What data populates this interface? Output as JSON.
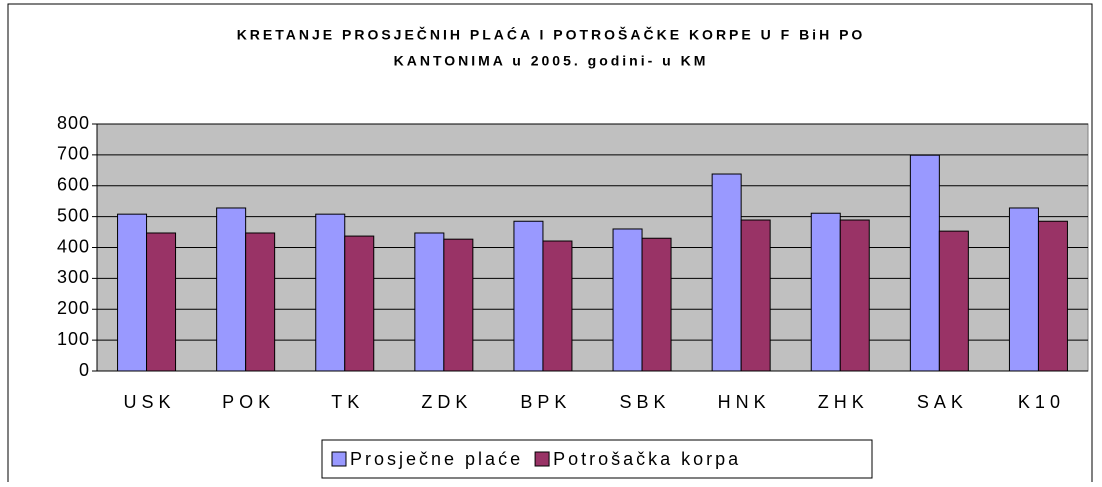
{
  "chart_data": {
    "type": "bar",
    "title": [
      "KRETANJE PROSJEČNIH PLAĆA I POTROŠAČKE KORPE U F BiH PO",
      "KANTONIMA u 2005. godini- u KM"
    ],
    "categories": [
      "USK",
      "POK",
      "TK",
      "ZDK",
      "BPK",
      "SBK",
      "HNK",
      "ZHK",
      "SAK",
      "K10"
    ],
    "series": [
      {
        "name": "Prosječne plaće",
        "color": "#9999ff",
        "values": [
          508,
          528,
          508,
          447,
          485,
          460,
          638,
          511,
          699,
          528
        ]
      },
      {
        "name": "Potrošačka korpa",
        "color": "#993366",
        "values": [
          447,
          447,
          437,
          427,
          421,
          430,
          489,
          489,
          453,
          485
        ]
      }
    ],
    "ylim": [
      0,
      800
    ],
    "yticks": [
      0,
      100,
      200,
      300,
      400,
      500,
      600,
      700,
      800
    ],
    "grid": true,
    "legend": "bottom",
    "plot_background": "#c0c0c0"
  }
}
